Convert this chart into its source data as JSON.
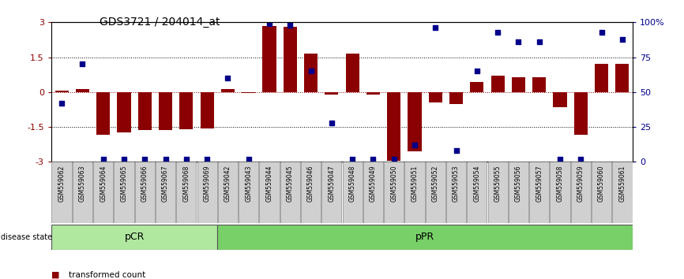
{
  "title": "GDS3721 / 204014_at",
  "samples": [
    "GSM559062",
    "GSM559063",
    "GSM559064",
    "GSM559065",
    "GSM559066",
    "GSM559067",
    "GSM559068",
    "GSM559069",
    "GSM559042",
    "GSM559043",
    "GSM559044",
    "GSM559045",
    "GSM559046",
    "GSM559047",
    "GSM559048",
    "GSM559049",
    "GSM559050",
    "GSM559051",
    "GSM559052",
    "GSM559053",
    "GSM559054",
    "GSM559055",
    "GSM559056",
    "GSM559057",
    "GSM559058",
    "GSM559059",
    "GSM559060",
    "GSM559061"
  ],
  "bar_values": [
    0.05,
    0.12,
    -1.85,
    -1.72,
    -1.62,
    -1.65,
    -1.6,
    -1.55,
    0.12,
    -0.05,
    2.85,
    2.8,
    1.65,
    -0.1,
    1.65,
    -0.1,
    -2.95,
    -2.55,
    -0.45,
    -0.52,
    0.45,
    0.7,
    0.65,
    0.65,
    -0.65,
    -1.85,
    1.2,
    1.2
  ],
  "dot_values": [
    42,
    70,
    2,
    2,
    2,
    2,
    2,
    2,
    60,
    2,
    99,
    98,
    65,
    28,
    2,
    2,
    2,
    12,
    96,
    8,
    65,
    93,
    86,
    86,
    2,
    2,
    93,
    88
  ],
  "group_boundaries": [
    8,
    28
  ],
  "bar_color": "#8b0000",
  "dot_color": "#00008b",
  "ylim": [
    -3,
    3
  ],
  "y_left_ticks": [
    3,
    1.5,
    0,
    -1.5,
    -3
  ],
  "y_right_ticks": [
    100,
    75,
    50,
    25,
    0
  ],
  "background_color": "#ffffff",
  "pcr_color": "#b0e8a0",
  "ppr_color": "#78d068"
}
